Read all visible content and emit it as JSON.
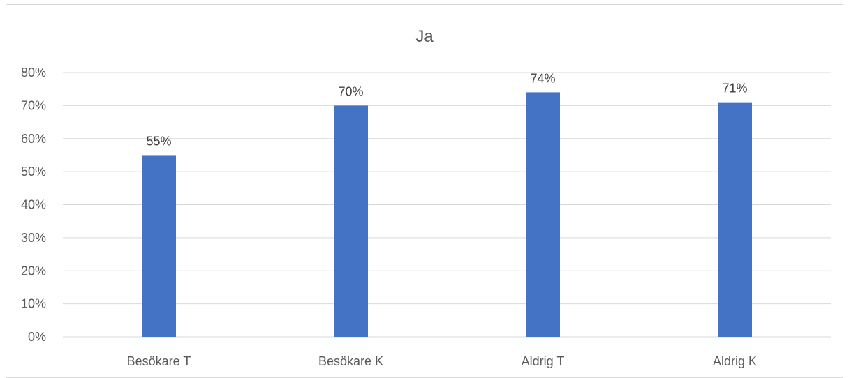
{
  "chart_data": {
    "type": "bar",
    "title": "Ja",
    "categories": [
      "Besökare T",
      "Besökare K",
      "Aldrig T",
      "Aldrig K"
    ],
    "values": [
      0.55,
      0.7,
      0.74,
      0.71
    ],
    "data_labels": [
      "55%",
      "70%",
      "74%",
      "71%"
    ],
    "ylim": [
      0,
      0.8
    ],
    "y_ticks": [
      "0%",
      "10%",
      "20%",
      "30%",
      "40%",
      "50%",
      "60%",
      "70%",
      "80%"
    ],
    "grid": true,
    "legend": "none",
    "bar_color": "#4472c4",
    "xlabel": "",
    "ylabel": ""
  }
}
